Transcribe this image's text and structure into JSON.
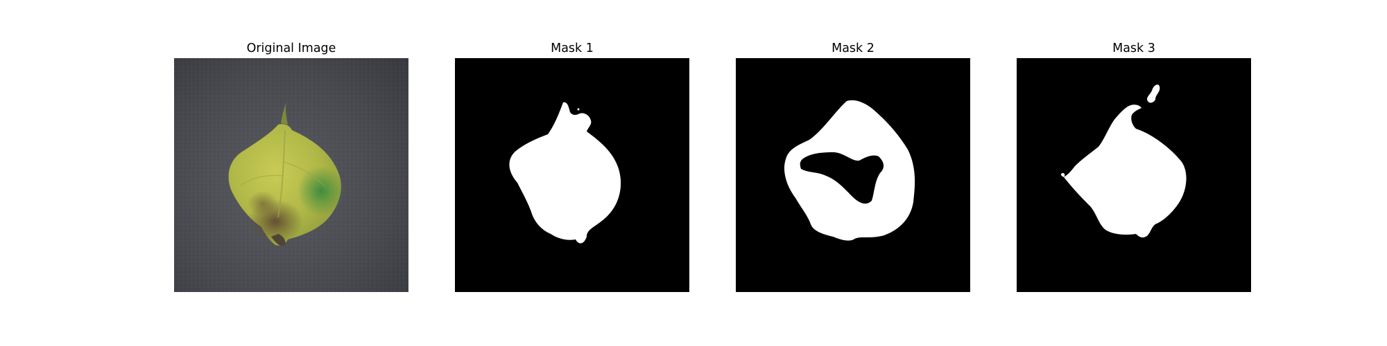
{
  "figure": {
    "panels": [
      {
        "title": "Original Image",
        "content": "leaf-photo"
      },
      {
        "title": "Mask 1",
        "content": "binary-mask"
      },
      {
        "title": "Mask 2",
        "content": "binary-mask"
      },
      {
        "title": "Mask 3",
        "content": "binary-mask"
      }
    ]
  },
  "colors": {
    "mask_foreground": "#ffffff",
    "mask_background": "#000000",
    "background_surface": "#4a4c52",
    "leaf_yellow": "#bcc24a",
    "leaf_green": "#3f8a3c",
    "leaf_brown": "#6d5a3e"
  }
}
